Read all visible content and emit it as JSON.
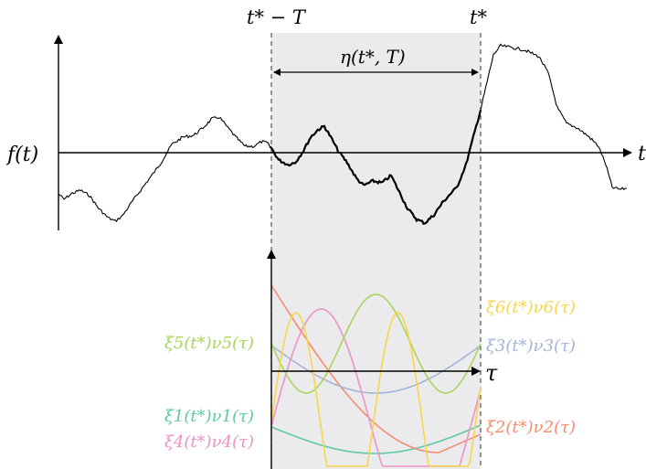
{
  "labels": {
    "f_axis": "f(t)",
    "t_axis": "t",
    "left_marker": "t* − T",
    "right_marker": "t*",
    "eta": "η(t*, T)",
    "tau_axis": "τ"
  },
  "modes": [
    {
      "id": 1,
      "label": "ξ1(t*)ν1(τ)",
      "color": "#5fc9a6"
    },
    {
      "id": 2,
      "label": "ξ2(t*)ν2(τ)",
      "color": "#f58c6e"
    },
    {
      "id": 3,
      "label": "ξ3(t*)ν3(τ)",
      "color": "#a3b4d6"
    },
    {
      "id": 4,
      "label": "ξ4(t*)ν4(τ)",
      "color": "#ec93c8"
    },
    {
      "id": 5,
      "label": "ξ5(t*)ν5(τ)",
      "color": "#a8d55a"
    },
    {
      "id": 6,
      "label": "ξ6(t*)ν6(τ)",
      "color": "#f7d64a"
    }
  ],
  "colors": {
    "window_fill": "#ebebed",
    "signal": "#000000"
  }
}
